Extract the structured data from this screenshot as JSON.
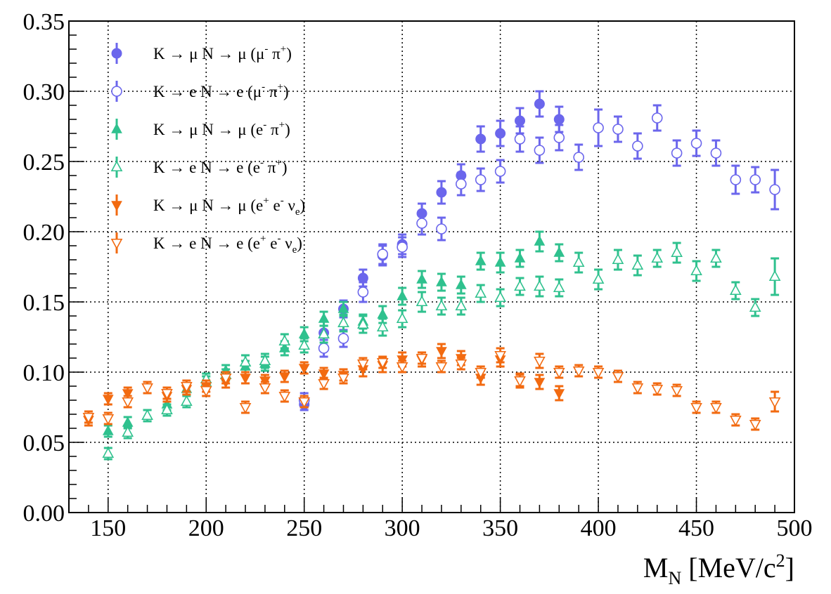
{
  "chart_data": {
    "type": "scatter",
    "xlabel": {
      "main": "M",
      "sub": "N",
      "rest": " [MeV/c",
      "sup": "2",
      "end": "]"
    },
    "ylabel": "",
    "xlim": [
      130,
      500
    ],
    "ylim": [
      0,
      0.35
    ],
    "x_ticks": [
      150,
      200,
      250,
      300,
      350,
      400,
      450,
      500
    ],
    "x_tick_labels": [
      "150",
      "200",
      "250",
      "300",
      "350",
      "400",
      "450",
      "500"
    ],
    "y_ticks": [
      0,
      0.05,
      0.1,
      0.15,
      0.2,
      0.25,
      0.3,
      0.35
    ],
    "y_tick_labels": [
      "0.00",
      "0.05",
      "0.10",
      "0.15",
      "0.20",
      "0.25",
      "0.30",
      "0.35"
    ],
    "grid": true,
    "legend_position": "top-left",
    "colors": {
      "blue": "#6b66ec",
      "green": "#2fc18e",
      "orange": "#f26a10"
    },
    "series": [
      {
        "legend": [
          "K → μ N → μ (μ",
          "-",
          " π",
          "+",
          ")"
        ],
        "color": "blue",
        "marker": "circle",
        "filled": true,
        "x": [
          250,
          260,
          270,
          280,
          290,
          300,
          310,
          320,
          330,
          340,
          350,
          360,
          370,
          380
        ],
        "y": [
          0.077,
          0.128,
          0.145,
          0.167,
          0.183,
          0.191,
          0.213,
          0.228,
          0.24,
          0.266,
          0.27,
          0.279,
          0.291,
          0.28
        ],
        "err": [
          0.004,
          0.005,
          0.006,
          0.006,
          0.007,
          0.007,
          0.007,
          0.008,
          0.008,
          0.009,
          0.009,
          0.009,
          0.009,
          0.009
        ]
      },
      {
        "legend": [
          "K → e N → e (μ",
          "-",
          " π",
          "+",
          ")"
        ],
        "color": "blue",
        "marker": "circle",
        "filled": false,
        "x": [
          250,
          260,
          270,
          280,
          290,
          300,
          310,
          320,
          330,
          340,
          350,
          360,
          370,
          380,
          390,
          400,
          410,
          420,
          430,
          440,
          450,
          460,
          470,
          480,
          490
        ],
        "y": [
          0.08,
          0.117,
          0.124,
          0.157,
          0.184,
          0.189,
          0.206,
          0.202,
          0.234,
          0.237,
          0.243,
          0.266,
          0.258,
          0.267,
          0.253,
          0.274,
          0.273,
          0.261,
          0.281,
          0.256,
          0.263,
          0.256,
          0.237,
          0.237,
          0.23
        ],
        "err": [
          0.005,
          0.006,
          0.006,
          0.007,
          0.007,
          0.007,
          0.008,
          0.008,
          0.008,
          0.008,
          0.008,
          0.009,
          0.009,
          0.009,
          0.009,
          0.013,
          0.009,
          0.009,
          0.009,
          0.009,
          0.009,
          0.009,
          0.01,
          0.009,
          0.014
        ]
      },
      {
        "legend": [
          "K → μ N → μ (e",
          "-",
          " π",
          "+",
          ")"
        ],
        "color": "green",
        "marker": "triangle-up",
        "filled": true,
        "x": [
          150,
          160,
          170,
          180,
          190,
          200,
          210,
          220,
          230,
          240,
          250,
          260,
          270,
          280,
          290,
          300,
          310,
          320,
          330,
          340,
          350,
          360,
          370,
          380
        ],
        "y": [
          0.058,
          0.064,
          0.069,
          0.077,
          0.088,
          0.093,
          0.101,
          0.104,
          0.106,
          0.117,
          0.127,
          0.138,
          0.145,
          0.136,
          0.141,
          0.154,
          0.166,
          0.164,
          0.162,
          0.179,
          0.178,
          0.181,
          0.193,
          0.185
        ],
        "err": [
          0.004,
          0.004,
          0.004,
          0.004,
          0.004,
          0.004,
          0.004,
          0.004,
          0.005,
          0.005,
          0.005,
          0.005,
          0.005,
          0.005,
          0.006,
          0.006,
          0.006,
          0.006,
          0.006,
          0.006,
          0.007,
          0.006,
          0.007,
          0.006
        ]
      },
      {
        "legend": [
          "K → e N → e (e",
          "-",
          " π",
          "+",
          ")"
        ],
        "color": "green",
        "marker": "triangle-up",
        "filled": false,
        "x": [
          150,
          160,
          170,
          180,
          190,
          200,
          210,
          220,
          230,
          240,
          250,
          260,
          270,
          280,
          290,
          300,
          310,
          320,
          330,
          340,
          350,
          360,
          370,
          380,
          390,
          400,
          410,
          420,
          430,
          440,
          450,
          460,
          470,
          480,
          490
        ],
        "y": [
          0.042,
          0.057,
          0.069,
          0.073,
          0.079,
          0.095,
          0.098,
          0.107,
          0.108,
          0.122,
          0.119,
          0.127,
          0.135,
          0.134,
          0.132,
          0.138,
          0.15,
          0.147,
          0.147,
          0.156,
          0.153,
          0.161,
          0.161,
          0.16,
          0.178,
          0.166,
          0.18,
          0.176,
          0.181,
          0.185,
          0.172,
          0.181,
          0.158,
          0.146,
          0.168
        ],
        "err": [
          0.004,
          0.004,
          0.004,
          0.004,
          0.004,
          0.004,
          0.004,
          0.005,
          0.005,
          0.005,
          0.005,
          0.006,
          0.006,
          0.006,
          0.006,
          0.006,
          0.007,
          0.006,
          0.006,
          0.006,
          0.006,
          0.006,
          0.007,
          0.006,
          0.007,
          0.007,
          0.007,
          0.007,
          0.006,
          0.007,
          0.007,
          0.006,
          0.006,
          0.006,
          0.013
        ]
      },
      {
        "legend": [
          "K → μ N → μ (e",
          "+",
          " e",
          "-",
          " ν",
          "e",
          ")"
        ],
        "color": "orange",
        "marker": "triangle-down",
        "filled": true,
        "x": [
          140,
          150,
          160,
          170,
          180,
          190,
          200,
          210,
          220,
          230,
          240,
          250,
          260,
          270,
          280,
          290,
          300,
          310,
          320,
          330,
          340,
          350,
          360,
          370,
          380
        ],
        "y": [
          0.066,
          0.081,
          0.085,
          0.089,
          0.083,
          0.088,
          0.09,
          0.093,
          0.096,
          0.094,
          0.097,
          0.103,
          0.099,
          0.098,
          0.102,
          0.105,
          0.109,
          0.109,
          0.115,
          0.11,
          0.096,
          0.109,
          0.094,
          0.093,
          0.085
        ],
        "err": [
          0.004,
          0.004,
          0.004,
          0.004,
          0.004,
          0.004,
          0.004,
          0.004,
          0.004,
          0.004,
          0.004,
          0.004,
          0.004,
          0.004,
          0.005,
          0.005,
          0.005,
          0.005,
          0.005,
          0.005,
          0.005,
          0.005,
          0.005,
          0.005,
          0.005
        ]
      },
      {
        "legend": [
          "K → e N → e (e",
          "+",
          " e",
          "-",
          " ν",
          "e",
          ")"
        ],
        "color": "orange",
        "marker": "triangle-down",
        "filled": false,
        "x": [
          140,
          150,
          160,
          170,
          180,
          190,
          200,
          210,
          220,
          230,
          240,
          250,
          260,
          270,
          280,
          290,
          300,
          310,
          320,
          330,
          340,
          350,
          360,
          370,
          380,
          390,
          400,
          410,
          420,
          430,
          440,
          450,
          460,
          470,
          480,
          490
        ],
        "y": [
          0.068,
          0.067,
          0.079,
          0.089,
          0.085,
          0.09,
          0.087,
          0.096,
          0.075,
          0.089,
          0.083,
          0.079,
          0.092,
          0.096,
          0.106,
          0.107,
          0.104,
          0.11,
          0.104,
          0.106,
          0.1,
          0.112,
          0.094,
          0.108,
          0.1,
          0.101,
          0.1,
          0.097,
          0.089,
          0.088,
          0.087,
          0.075,
          0.075,
          0.066,
          0.063,
          0.079
        ],
        "err": [
          0.004,
          0.004,
          0.004,
          0.004,
          0.004,
          0.004,
          0.004,
          0.004,
          0.004,
          0.004,
          0.004,
          0.004,
          0.004,
          0.004,
          0.004,
          0.004,
          0.004,
          0.004,
          0.004,
          0.004,
          0.004,
          0.005,
          0.004,
          0.005,
          0.004,
          0.004,
          0.004,
          0.004,
          0.004,
          0.004,
          0.004,
          0.004,
          0.004,
          0.004,
          0.004,
          0.007
        ]
      }
    ]
  }
}
